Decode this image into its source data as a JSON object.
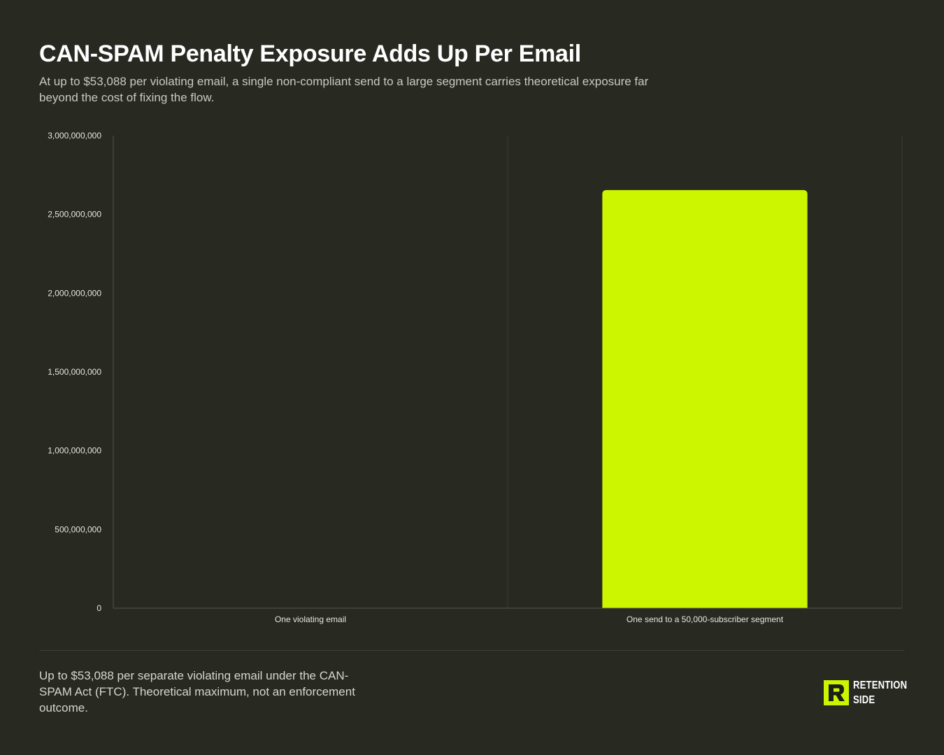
{
  "header": {
    "title": "CAN-SPAM Penalty Exposure Adds Up Per Email",
    "subtitle": "At up to $53,088 per violating email, a single non-compliant send to a large segment carries theoretical exposure far beyond the cost of fixing the flow."
  },
  "chart_data": {
    "type": "bar",
    "categories": [
      "One violating email",
      "One send to a 50,000-subscriber segment"
    ],
    "values": [
      53088,
      2654400000
    ],
    "ylim": [
      0,
      3000000000
    ],
    "yticks": [
      0,
      500000000,
      1000000000,
      1500000000,
      2000000000,
      2500000000,
      3000000000
    ],
    "ytick_labels": [
      "0",
      "500,000,000",
      "1,000,000,000",
      "1,500,000,000",
      "2,000,000,000",
      "2,500,000,000",
      "3,000,000,000"
    ],
    "grid": "vertical",
    "legend": "none",
    "colors": {
      "bar": "#ccf500",
      "grid": "#3a3c34",
      "axis": "#55574f",
      "tick_text": "#e6e6e0"
    }
  },
  "footer": {
    "note": "Up to $53,088 per separate violating email under the CAN-SPAM Act (FTC). Theoretical maximum, not an enforcement outcome.",
    "brand_line1": "RETENTION",
    "brand_line2": "SIDE",
    "brand_color": "#ccf500"
  }
}
